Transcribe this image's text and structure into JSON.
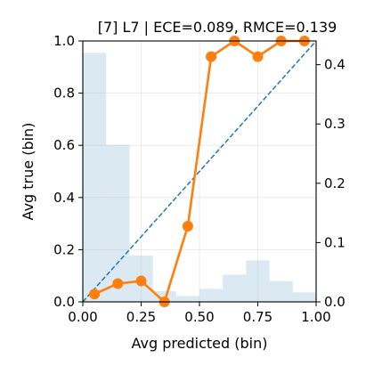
{
  "chart_data": {
    "type": "line",
    "title": "[7] L7 | ECE=0.089, RMCE=0.139",
    "xlabel": "Avg predicted (bin)",
    "ylabel": "Avg true (bin)",
    "xlim": [
      0,
      1
    ],
    "ylim": [
      0,
      1
    ],
    "y2lim": [
      0,
      0.44
    ],
    "x_ticks": [
      "0.00",
      "0.25",
      "0.50",
      "0.75",
      "1.00"
    ],
    "y_ticks": [
      "0.0",
      "0.2",
      "0.4",
      "0.6",
      "0.8",
      "1.0"
    ],
    "y2_ticks": [
      "0.0",
      "0.1",
      "0.2",
      "0.3",
      "0.4"
    ],
    "grid": true,
    "colors": {
      "calibration": "#ff7f0e",
      "diagonal": "#1f77b4",
      "histogram": "#1f77b4"
    },
    "series": [
      {
        "kind": "line-markers",
        "x": [
          0.05,
          0.15,
          0.25,
          0.35,
          0.45,
          0.55,
          0.65,
          0.75,
          0.85,
          0.95
        ],
        "y": [
          0.03,
          0.07,
          0.08,
          0.0,
          0.29,
          0.94,
          1.0,
          0.94,
          1.0,
          1.0
        ]
      },
      {
        "kind": "diagonal",
        "x": [
          0,
          1
        ],
        "y": [
          0,
          1
        ]
      },
      {
        "kind": "histogram-right-axis",
        "bin_edges": [
          0.0,
          0.1,
          0.2,
          0.3,
          0.4,
          0.5,
          0.6,
          0.7,
          0.8,
          0.9,
          1.0
        ],
        "values": [
          0.42,
          0.265,
          0.078,
          0.018,
          0.01,
          0.022,
          0.046,
          0.07,
          0.035,
          0.016
        ]
      }
    ]
  }
}
